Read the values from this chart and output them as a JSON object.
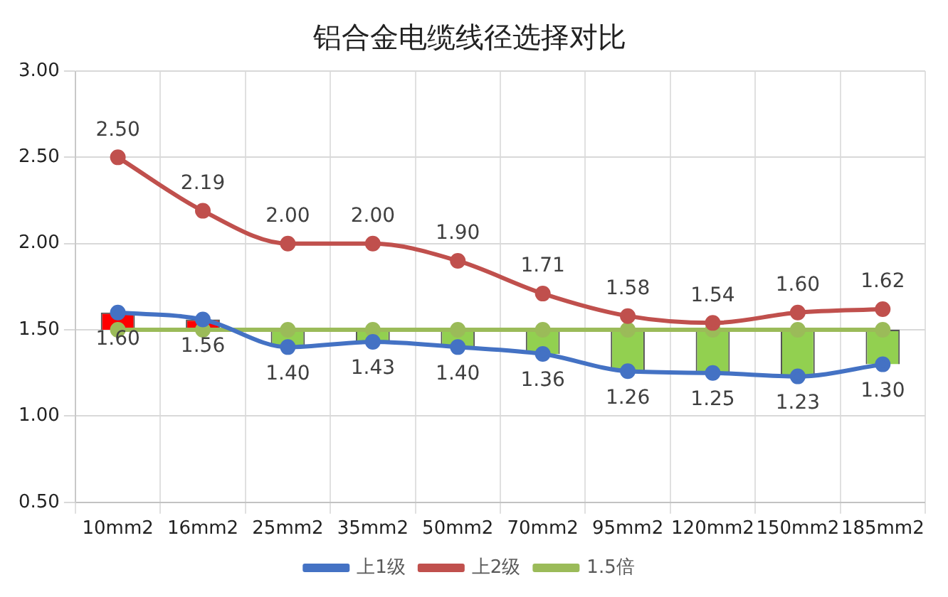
{
  "chart_data": {
    "type": "line",
    "title": "铝合金电缆线径选择对比",
    "categories": [
      "10mm2",
      "16mm2",
      "25mm2",
      "35mm2",
      "50mm2",
      "70mm2",
      "95mm2",
      "120mm2",
      "150mm2",
      "185mm2"
    ],
    "series": [
      {
        "type": "bar",
        "base": [
          1.5,
          1.5,
          1.5,
          1.5,
          1.5,
          1.5,
          1.5,
          1.5,
          1.5,
          1.5
        ],
        "values": [
          0.1,
          0.06,
          -0.1,
          -0.07,
          -0.1,
          -0.14,
          -0.24,
          -0.25,
          -0.27,
          -0.2
        ],
        "colors": [
          "#ff0000",
          "#ff0000",
          "#92d050",
          "#92d050",
          "#92d050",
          "#92d050",
          "#92d050",
          "#92d050",
          "#92d050",
          "#92d050"
        ]
      },
      {
        "name": "上1级",
        "color": "#4472c4",
        "values": [
          1.6,
          1.56,
          1.4,
          1.43,
          1.4,
          1.36,
          1.26,
          1.25,
          1.23,
          1.3
        ],
        "value_labels": [
          "1.60",
          "1.56",
          "1.40",
          "1.43",
          "1.40",
          "1.36",
          "1.26",
          "1.25",
          "1.23",
          "1.30"
        ]
      },
      {
        "name": "上2级",
        "color": "#c0504d",
        "values": [
          2.5,
          2.19,
          2.0,
          2.0,
          1.9,
          1.71,
          1.58,
          1.54,
          1.6,
          1.62
        ],
        "value_labels": [
          "2.50",
          "2.19",
          "2.00",
          "2.00",
          "1.90",
          "1.71",
          "1.58",
          "1.54",
          "1.60",
          "1.62"
        ]
      },
      {
        "name": "1.5倍",
        "color": "#9bbb59",
        "values": [
          1.5,
          1.5,
          1.5,
          1.5,
          1.5,
          1.5,
          1.5,
          1.5,
          1.5,
          1.5
        ]
      }
    ],
    "ylim": [
      0.5,
      3.0
    ],
    "yticks": [
      {
        "value": 0.5,
        "label": "0.50"
      },
      {
        "value": 1.0,
        "label": "1.00"
      },
      {
        "value": 1.5,
        "label": "1.50"
      },
      {
        "value": 2.0,
        "label": "2.00"
      },
      {
        "value": 2.5,
        "label": "2.50"
      },
      {
        "value": 3.0,
        "label": "3.00"
      }
    ],
    "grid": true,
    "legend": "bottom",
    "marker": "circle",
    "line_style": "solid"
  }
}
